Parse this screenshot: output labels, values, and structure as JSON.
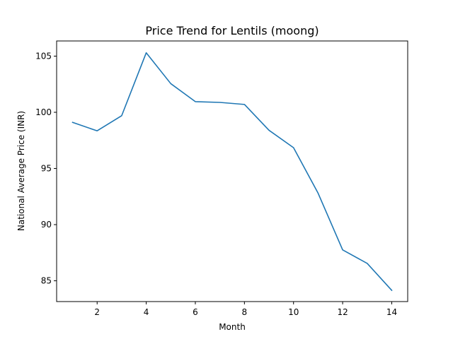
{
  "chart_data": {
    "type": "line",
    "title": "Price Trend for Lentils (moong)",
    "xlabel": "Month",
    "ylabel": "National Average Price (INR)",
    "xlim": [
      0.35,
      14.65
    ],
    "ylim": [
      83.15,
      106.35
    ],
    "x_ticks": [
      2,
      4,
      6,
      8,
      10,
      12,
      14
    ],
    "y_ticks": [
      85,
      90,
      95,
      100,
      105
    ],
    "grid": false,
    "series": [
      {
        "color": "#1f77b4",
        "x": [
          1,
          2,
          3,
          4,
          5,
          6,
          7,
          8,
          9,
          10,
          11,
          12,
          13,
          14
        ],
        "y": [
          99.1,
          98.35,
          99.7,
          105.3,
          102.55,
          100.95,
          100.88,
          100.7,
          98.4,
          96.85,
          92.8,
          87.75,
          86.55,
          84.15
        ]
      }
    ]
  }
}
